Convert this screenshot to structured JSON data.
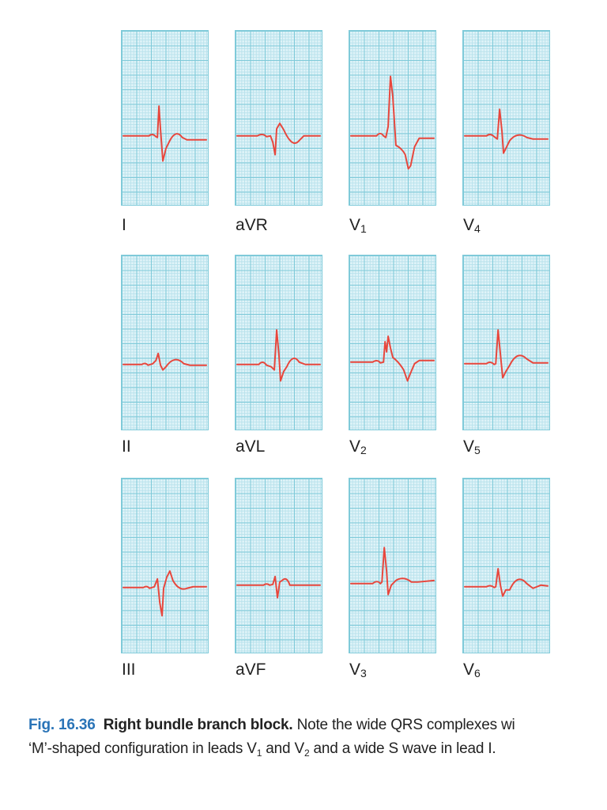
{
  "figure": {
    "leads": [
      {
        "id": "I",
        "label": "I",
        "sub": ""
      },
      {
        "id": "aVR",
        "label": "aVR",
        "sub": ""
      },
      {
        "id": "V1",
        "label": "V",
        "sub": "1"
      },
      {
        "id": "V4",
        "label": "V",
        "sub": "4"
      },
      {
        "id": "II",
        "label": "II",
        "sub": ""
      },
      {
        "id": "aVL",
        "label": "aVL",
        "sub": ""
      },
      {
        "id": "V2",
        "label": "V",
        "sub": "2"
      },
      {
        "id": "V5",
        "label": "V",
        "sub": "5"
      },
      {
        "id": "III",
        "label": "III",
        "sub": ""
      },
      {
        "id": "aVF",
        "label": "aVF",
        "sub": ""
      },
      {
        "id": "V3",
        "label": "V",
        "sub": "3"
      },
      {
        "id": "V6",
        "label": "V",
        "sub": "6"
      }
    ],
    "colors": {
      "grid_major": "#7fcad9",
      "grid_minor": "#b9e2ec",
      "grid_bg": "#dff3f8",
      "trace": "#e8463c",
      "fig_number": "#2a74b7"
    }
  },
  "caption": {
    "fig_number": "Fig. 16.36",
    "title": "Right bundle branch block.",
    "line1_text": " Note the wide QRS complexes wi",
    "line2_a": "‘M’-shaped configuration in leads V",
    "line2_sub1": "1",
    "line2_b": " and V",
    "line2_sub2": "2",
    "line2_c": " and a wide S wave in lead I."
  }
}
